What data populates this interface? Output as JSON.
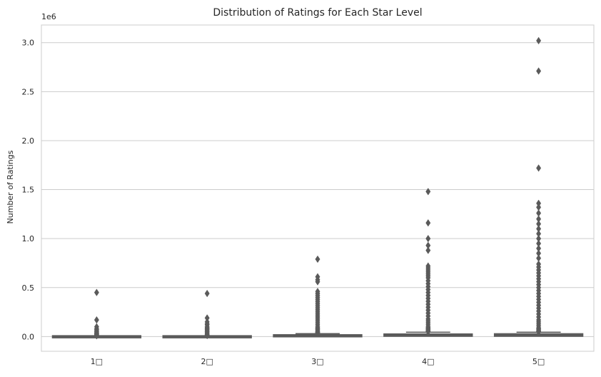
{
  "chart_data": {
    "type": "box",
    "title": "Distribution of Ratings for Each Star Level",
    "xlabel": "",
    "ylabel": "Number of Ratings",
    "offset_label": "1e6",
    "categories": [
      "1□",
      "2□",
      "3□",
      "4□",
      "5□"
    ],
    "y_ticks": [
      0.0,
      0.5,
      1.0,
      1.5,
      2.0,
      2.5,
      3.0
    ],
    "y_tick_labels": [
      "0.0",
      "0.5",
      "1.0",
      "1.5",
      "2.0",
      "2.5",
      "3.0"
    ],
    "ylim": [
      -0.15,
      3.18
    ],
    "grid": "horizontal",
    "colors": {
      "box": "#5a5a5a",
      "grid": "#cccccc",
      "axes": "#cccccc"
    },
    "boxes": [
      {
        "q1": 0.0005,
        "median": 0.001,
        "q3": 0.002,
        "whisker_low": 0.0,
        "whisker_high": 0.005,
        "outliers": [
          0.45,
          0.17,
          0.1,
          0.08,
          0.07,
          0.06,
          0.05,
          0.04,
          0.035,
          0.03,
          0.025,
          0.02,
          0.015,
          0.01,
          0.008
        ]
      },
      {
        "q1": 0.0005,
        "median": 0.001,
        "q3": 0.002,
        "whisker_low": 0.0,
        "whisker_high": 0.005,
        "outliers": [
          0.44,
          0.19,
          0.15,
          0.13,
          0.12,
          0.1,
          0.09,
          0.08,
          0.07,
          0.06,
          0.05,
          0.04,
          0.03,
          0.02,
          0.015,
          0.01
        ]
      },
      {
        "q1": 0.002,
        "median": 0.006,
        "q3": 0.012,
        "whisker_low": 0.0,
        "whisker_high": 0.03,
        "outliers": [
          0.79,
          0.61,
          0.58,
          0.56,
          0.46,
          0.44,
          0.42,
          0.4,
          0.38,
          0.36,
          0.34,
          0.32,
          0.3,
          0.28,
          0.26,
          0.24,
          0.22,
          0.2,
          0.18,
          0.16,
          0.14,
          0.12,
          0.1,
          0.09,
          0.08,
          0.07,
          0.06,
          0.05,
          0.045,
          0.04,
          0.035
        ]
      },
      {
        "q1": 0.003,
        "median": 0.009,
        "q3": 0.02,
        "whisker_low": 0.0,
        "whisker_high": 0.045,
        "outliers": [
          1.48,
          1.16,
          1.0,
          0.93,
          0.88,
          0.72,
          0.7,
          0.68,
          0.66,
          0.64,
          0.62,
          0.6,
          0.57,
          0.54,
          0.51,
          0.48,
          0.45,
          0.42,
          0.39,
          0.36,
          0.33,
          0.3,
          0.27,
          0.24,
          0.21,
          0.18,
          0.16,
          0.14,
          0.12,
          0.1,
          0.09,
          0.08,
          0.07,
          0.06,
          0.055,
          0.05
        ]
      },
      {
        "q1": 0.003,
        "median": 0.01,
        "q3": 0.022,
        "whisker_low": 0.0,
        "whisker_high": 0.045,
        "outliers": [
          3.02,
          2.71,
          1.72,
          1.36,
          1.32,
          1.26,
          1.2,
          1.15,
          1.1,
          1.05,
          1.0,
          0.95,
          0.9,
          0.85,
          0.8,
          0.74,
          0.71,
          0.68,
          0.65,
          0.62,
          0.59,
          0.56,
          0.53,
          0.5,
          0.47,
          0.44,
          0.41,
          0.38,
          0.35,
          0.32,
          0.29,
          0.26,
          0.23,
          0.2,
          0.17,
          0.15,
          0.13,
          0.11,
          0.09,
          0.08,
          0.07,
          0.06,
          0.055,
          0.05
        ]
      }
    ]
  }
}
